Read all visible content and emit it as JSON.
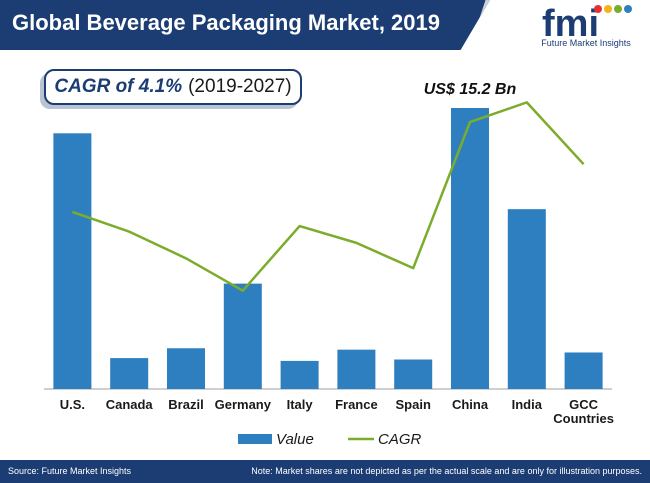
{
  "header": {
    "title": "Global Beverage Packaging Market, 2019"
  },
  "logo": {
    "letters": "fmi",
    "subtitle": "Future Market Insights"
  },
  "cagr_box": {
    "label": "CAGR of 4.1%",
    "period": "(2019-2027)"
  },
  "footer": {
    "source": "Source: Future Market Insights",
    "note": "Note: Market shares are not depicted as per the actual scale and are only for illustration purposes."
  },
  "colors": {
    "bar": "#2e7fc0",
    "line": "#7cac2c",
    "header_bg": "#1c3d73"
  },
  "chart_data": {
    "type": "bar",
    "categories": [
      "U.S.",
      "Canada",
      "Brazil",
      "Germany",
      "Italy",
      "France",
      "Spain",
      "China",
      "India",
      "GCC Countries"
    ],
    "category_lines": [
      [
        "U.S."
      ],
      [
        "Canada"
      ],
      [
        "Brazil"
      ],
      [
        "Germany"
      ],
      [
        "Italy"
      ],
      [
        "France"
      ],
      [
        "Spain"
      ],
      [
        "China"
      ],
      [
        "India"
      ],
      [
        "GCC",
        "Countries"
      ]
    ],
    "series": [
      {
        "name": "Value",
        "type": "bar",
        "values": [
          91,
          11,
          14.5,
          37.5,
          10,
          14,
          10.5,
          100,
          64,
          13
        ]
      },
      {
        "name": "CAGR",
        "type": "line",
        "values": [
          63,
          56,
          46.5,
          35,
          58,
          52,
          43,
          95,
          102,
          80
        ]
      }
    ],
    "ylim": [
      0,
      100
    ],
    "annotation": "US$ 15.2 Bn",
    "annotation_category": "China",
    "legend": [
      "Value",
      "CAGR"
    ],
    "legend_position": "bottom",
    "grid": false
  }
}
